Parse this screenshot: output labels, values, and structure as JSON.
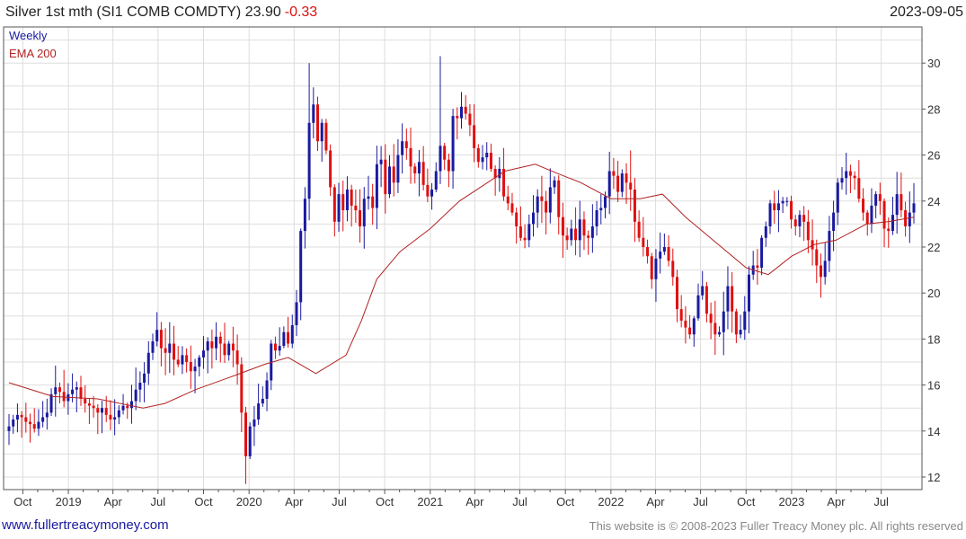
{
  "header": {
    "title": "Silver 1st mth (SI1 COMB COMDTY) 23.90",
    "change": "-0.33",
    "date": "2023-09-05"
  },
  "legend": {
    "weekly": "Weekly",
    "ema": "EMA 200"
  },
  "footer": {
    "site": "www.fullertreacymoney.com",
    "copyright": "This website is © 2008-2023 Fuller Treacy Money plc. All rights reserved"
  },
  "colors": {
    "up": "#1a1aa0",
    "down": "#e01010",
    "ema": "#b22222",
    "grid": "#dddddd",
    "change": "#e01010"
  },
  "chart_data": {
    "type": "candlestick",
    "frequency": "weekly",
    "date_range": [
      "2018-09-03",
      "2023-09-05"
    ],
    "x_tick_labels": [
      "Oct",
      "2019",
      "Apr",
      "Jul",
      "Oct",
      "2020",
      "Apr",
      "Jul",
      "Oct",
      "2021",
      "Apr",
      "Jul",
      "Oct",
      "2022",
      "Apr",
      "Jul",
      "Oct",
      "2023",
      "Apr",
      "Jul"
    ],
    "x_tick_dates": [
      "2018-10-01",
      "2019-01-01",
      "2019-04-01",
      "2019-07-01",
      "2019-10-01",
      "2020-01-01",
      "2020-04-01",
      "2020-07-01",
      "2020-10-01",
      "2021-01-01",
      "2021-04-01",
      "2021-07-01",
      "2021-10-01",
      "2022-01-01",
      "2022-04-01",
      "2022-07-01",
      "2022-10-01",
      "2023-01-01",
      "2023-04-01",
      "2023-07-01"
    ],
    "y_ticks": [
      12,
      14,
      16,
      18,
      20,
      22,
      24,
      26,
      28,
      30
    ],
    "ylim": [
      11,
      31
    ],
    "price_series": {
      "name": "Weekly",
      "close": [
        14.2,
        14.5,
        14.7,
        14.6,
        14.4,
        14.3,
        14.1,
        14.4,
        14.6,
        14.8,
        15.6,
        15.9,
        15.7,
        15.3,
        15.6,
        15.8,
        15.9,
        15.4,
        15.2,
        15.1,
        15.0,
        14.8,
        15.0,
        14.7,
        14.5,
        14.6,
        14.9,
        15.1,
        15.0,
        15.3,
        15.8,
        16.1,
        16.5,
        17.4,
        17.9,
        18.4,
        17.6,
        17.4,
        17.8,
        17.1,
        16.9,
        17.3,
        17.0,
        16.6,
        16.8,
        17.2,
        17.5,
        17.9,
        17.6,
        18.1,
        17.8,
        17.3,
        17.8,
        17.5,
        16.9,
        14.8,
        12.9,
        14.2,
        14.5,
        15.2,
        15.4,
        16.2,
        17.8,
        17.5,
        17.7,
        18.3,
        17.8,
        18.6,
        19.6,
        22.7,
        24.1,
        27.4,
        28.2,
        26.6,
        27.4,
        26.2,
        24.6,
        23.1,
        24.3,
        23.6,
        24.5,
        23.8,
        23.6,
        22.9,
        24.1,
        24.2,
        23.7,
        25.6,
        25.8,
        24.3,
        25.5,
        24.8,
        26.0,
        26.6,
        26.3,
        25.5,
        25.2,
        25.7,
        24.7,
        24.2,
        24.5,
        25.3,
        26.4,
        25.8,
        25.3,
        27.7,
        27.6,
        28.1,
        27.8,
        27.3,
        26.3,
        25.7,
        25.9,
        26.1,
        25.4,
        25.0,
        25.4,
        24.2,
        23.9,
        23.5,
        22.9,
        22.4,
        22.3,
        23.0,
        23.5,
        24.2,
        24.0,
        23.5,
        24.6,
        24.9,
        23.3,
        22.5,
        22.3,
        22.8,
        22.3,
        23.2,
        22.5,
        22.4,
        22.9,
        23.6,
        23.7,
        24.2,
        25.3,
        25.1,
        24.4,
        25.2,
        24.8,
        24.5,
        23.1,
        22.4,
        22.0,
        21.6,
        20.6,
        21.5,
        21.8,
        22.0,
        21.4,
        20.7,
        19.3,
        18.8,
        18.5,
        18.2,
        18.9,
        19.9,
        20.3,
        19.1,
        18.7,
        18.2,
        18.3,
        19.2,
        20.3,
        19.2,
        18.2,
        18.4,
        19.2,
        20.8,
        21.2,
        21.1,
        22.4,
        22.9,
        23.9,
        23.6,
        23.9,
        24.0,
        24.0,
        23.2,
        22.9,
        23.4,
        23.1,
        22.3,
        21.9,
        21.2,
        20.7,
        21.4,
        22.7,
        23.5,
        24.8,
        25.0,
        25.3,
        25.1,
        25.0,
        24.1,
        23.5,
        23.0,
        23.8,
        24.3,
        24.0,
        22.8,
        22.7,
        23.4,
        24.3,
        23.6,
        22.9,
        23.5,
        23.9
      ],
      "high_prints": [
        30.0,
        30.3,
        28.6,
        26.2
      ],
      "low_prints": [
        11.7,
        17.3,
        19.8
      ]
    },
    "ema_series": {
      "name": "EMA 200",
      "x": [
        "2018-09-03",
        "2018-12-01",
        "2019-03-01",
        "2019-06-01",
        "2019-07-15",
        "2019-09-15",
        "2019-12-01",
        "2020-02-01",
        "2020-03-20",
        "2020-05-15",
        "2020-07-15",
        "2020-08-15",
        "2020-09-15",
        "2020-11-01",
        "2021-01-01",
        "2021-03-01",
        "2021-06-01",
        "2021-08-01",
        "2021-09-15",
        "2021-11-01",
        "2022-01-01",
        "2022-03-01",
        "2022-04-15",
        "2022-06-01",
        "2022-08-01",
        "2022-10-01",
        "2022-11-15",
        "2023-01-01",
        "2023-02-15",
        "2023-04-01",
        "2023-06-01",
        "2023-07-15",
        "2023-09-05"
      ],
      "y": [
        16.1,
        15.5,
        15.4,
        15.0,
        15.2,
        15.8,
        16.4,
        16.9,
        17.2,
        16.5,
        17.3,
        18.8,
        20.6,
        21.8,
        22.8,
        24.0,
        25.3,
        25.6,
        25.2,
        24.8,
        24.1,
        24.1,
        24.3,
        23.3,
        22.2,
        21.1,
        20.8,
        21.6,
        22.1,
        22.3,
        23.0,
        23.1,
        23.3
      ]
    },
    "legend": [
      "Weekly",
      "EMA 200"
    ],
    "grid": true,
    "y_axis_side": "right"
  }
}
